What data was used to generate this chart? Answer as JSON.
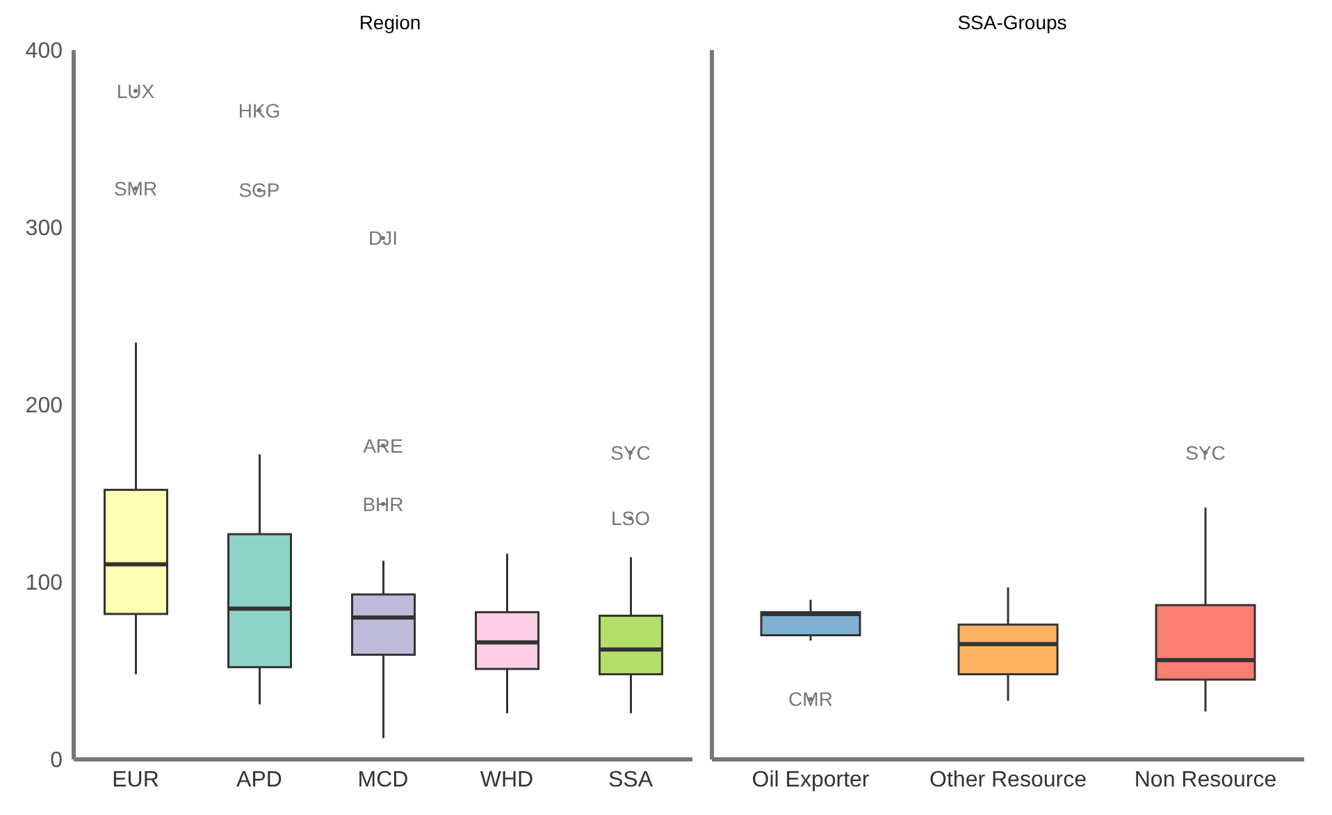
{
  "chart_data": [
    {
      "type": "box",
      "title": "Region",
      "categories": [
        "EUR",
        "APD",
        "MCD",
        "WHD",
        "SSA"
      ],
      "colors": [
        "#ffffb3",
        "#8dd3c7",
        "#bebada",
        "#fccde5",
        "#b3de69"
      ],
      "boxes": [
        {
          "low": 48,
          "q1": 82,
          "median": 110,
          "q3": 152,
          "high": 235,
          "outliers": [
            377,
            322
          ]
        },
        {
          "low": 31,
          "q1": 52,
          "median": 85,
          "q3": 127,
          "high": 172,
          "outliers": [
            366,
            321
          ]
        },
        {
          "low": 12,
          "q1": 59,
          "median": 80,
          "q3": 93,
          "high": 112,
          "outliers": [
            294,
            177,
            144
          ]
        },
        {
          "low": 26,
          "q1": 51,
          "median": 66,
          "q3": 83,
          "high": 116
        },
        {
          "low": 26,
          "q1": 48,
          "median": 62,
          "q3": 81,
          "high": 114,
          "outliers": [
            173,
            136
          ]
        }
      ],
      "ylim": [
        0,
        400
      ],
      "yticks": [
        0,
        100,
        200,
        300,
        400
      ],
      "annotations": [
        "LUX",
        "SMR",
        "HKG",
        "SGP",
        "DJI",
        "ARE",
        "BHR",
        "SYC",
        "LSO"
      ]
    },
    {
      "type": "box",
      "title": "SSA-Groups",
      "categories": [
        "Oil Exporter",
        "Other Resource",
        "Non Resource"
      ],
      "colors": [
        "#80b1d3",
        "#fdb462",
        "#fb8072"
      ],
      "boxes": [
        {
          "low": 67,
          "q1": 70,
          "median": 82,
          "q3": 83,
          "high": 90,
          "outliers": [
            34
          ]
        },
        {
          "low": 33,
          "q1": 48,
          "median": 65,
          "q3": 76,
          "high": 97
        },
        {
          "low": 27,
          "q1": 45,
          "median": 56,
          "q3": 87,
          "high": 142,
          "outliers": [
            173
          ]
        }
      ],
      "ylim": [
        0,
        400
      ],
      "yticks": [
        0,
        100,
        200,
        300,
        400
      ],
      "tick_labels": "x",
      "annotations": [
        "CMR",
        "SYC"
      ]
    }
  ]
}
